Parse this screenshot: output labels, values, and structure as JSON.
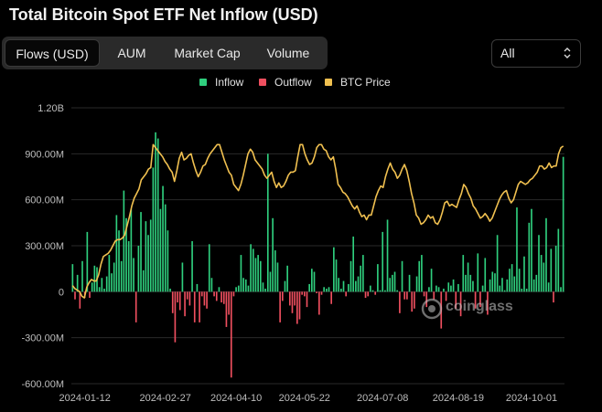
{
  "title": "Total Bitcoin Spot ETF Net Inflow (USD)",
  "tabs": [
    {
      "label": "Flows (USD)",
      "active": true
    },
    {
      "label": "AUM",
      "active": false
    },
    {
      "label": "Market Cap",
      "active": false
    },
    {
      "label": "Volume",
      "active": false
    }
  ],
  "range_select": {
    "value": "All",
    "icon": "chevron-updown-icon"
  },
  "legend": [
    {
      "label": "Inflow",
      "color": "#2fcf7e"
    },
    {
      "label": "Outflow",
      "color": "#ef4f5f"
    },
    {
      "label": "BTC Price",
      "color": "#f0c050"
    }
  ],
  "watermark": "coinglass",
  "colors": {
    "inflow": "#2fcf7e",
    "outflow": "#ef4f5f",
    "price": "#f0c050",
    "grid": "#2a2a2a",
    "axis_text": "#bdbdbd"
  },
  "chart_data": {
    "type": "bar",
    "title": "Total Bitcoin Spot ETF Net Inflow (USD)",
    "legend_position": "top-center",
    "grid": true,
    "y_ticks": [
      "1.20B",
      "900.00M",
      "600.00M",
      "300.00M",
      "0",
      "-300.00M",
      "-600.00M"
    ],
    "y_tick_values": [
      1200,
      900,
      600,
      300,
      0,
      -300,
      -600
    ],
    "ylim": [
      -600,
      1200
    ],
    "y_unit": "M USD",
    "x_ticks": [
      "2024-01-12",
      "2024-02-27",
      "2024-04-10",
      "2024-05-22",
      "2024-07-08",
      "2024-08-19",
      "2024-10-01"
    ],
    "x_tick_positions": [
      5,
      38,
      67,
      95,
      127,
      158,
      188
    ],
    "series": [
      {
        "name": "Inflow / Outflow",
        "type": "bar",
        "values": [
          180,
          -50,
          110,
          -110,
          200,
          -40,
          390,
          -40,
          60,
          170,
          160,
          30,
          90,
          20,
          100,
          240,
          120,
          190,
          500,
          400,
          200,
          660,
          480,
          330,
          540,
          220,
          -200,
          300,
          520,
          140,
          460,
          370,
          470,
          810,
          1040,
          1000,
          540,
          690,
          570,
          400,
          20,
          -140,
          -330,
          -70,
          -120,
          190,
          -160,
          -50,
          -90,
          330,
          -200,
          50,
          -200,
          -30,
          -90,
          -110,
          310,
          90,
          -30,
          -60,
          30,
          -70,
          -80,
          -230,
          -150,
          -560,
          -30,
          30,
          40,
          240,
          90,
          80,
          40,
          310,
          280,
          220,
          240,
          200,
          60,
          20,
          900,
          130,
          480,
          270,
          190,
          -200,
          -60,
          70,
          170,
          -90,
          -140,
          -90,
          -210,
          -180,
          -20,
          -30,
          -100,
          50,
          150,
          130,
          -10,
          -150,
          -20,
          30,
          20,
          30,
          -80,
          290,
          210,
          90,
          20,
          70,
          -30,
          50,
          200,
          360,
          70,
          100,
          170,
          240,
          -40,
          -30,
          40,
          10,
          -20,
          180,
          10,
          390,
          10,
          470,
          90,
          110,
          130,
          10,
          -140,
          200,
          -50,
          -50,
          110,
          -130,
          -110,
          100,
          200,
          240,
          -30,
          -100,
          30,
          150,
          -50,
          40,
          30,
          -240,
          20,
          -60,
          60,
          40,
          80,
          -110,
          50,
          -160,
          240,
          110,
          190,
          110,
          70,
          -110,
          250,
          -100,
          40,
          220,
          -150,
          80,
          130,
          120,
          370,
          40,
          90,
          10,
          80,
          150,
          180,
          100,
          550,
          150,
          20,
          230,
          20,
          450,
          540,
          80,
          110,
          370,
          240,
          190,
          480,
          60,
          280,
          -70,
          300,
          410,
          30,
          880
        ]
      },
      {
        "name": "BTC Price",
        "type": "line",
        "values": [
          40,
          20,
          10,
          0,
          -30,
          -40,
          30,
          60,
          80,
          70,
          70,
          110,
          180,
          230,
          240,
          250,
          270,
          300,
          330,
          340,
          340,
          350,
          370,
          430,
          490,
          560,
          610,
          640,
          670,
          730,
          750,
          770,
          800,
          810,
          960,
          940,
          920,
          900,
          880,
          850,
          830,
          800,
          780,
          720,
          790,
          870,
          910,
          860,
          870,
          890,
          900,
          840,
          790,
          750,
          780,
          820,
          830,
          870,
          900,
          920,
          940,
          960,
          960,
          910,
          860,
          820,
          780,
          760,
          700,
          680,
          660,
          700,
          760,
          830,
          900,
          930,
          910,
          860,
          840,
          820,
          800,
          760,
          740,
          760,
          780,
          720,
          680,
          710,
          680,
          690,
          720,
          760,
          780,
          780,
          790,
          880,
          960,
          960,
          900,
          860,
          830,
          840,
          880,
          940,
          960,
          960,
          930,
          920,
          880,
          860,
          880,
          800,
          700,
          680,
          650,
          640,
          620,
          590,
          560,
          540,
          560,
          520,
          490,
          500,
          470,
          500,
          500,
          560,
          620,
          660,
          690,
          680,
          750,
          800,
          840,
          800,
          780,
          740,
          760,
          800,
          830,
          790,
          720,
          640,
          580,
          500,
          480,
          440,
          450,
          470,
          500,
          480,
          490,
          450,
          440,
          470,
          520,
          580,
          590,
          560,
          570,
          560,
          550,
          600,
          640,
          700,
          680,
          640,
          610,
          560,
          540,
          510,
          480,
          490,
          510,
          490,
          460,
          480,
          520,
          560,
          600,
          630,
          650,
          660,
          610,
          580,
          600,
          650,
          700,
          720,
          710,
          700,
          710,
          730,
          740,
          760,
          780,
          820,
          820,
          800,
          810,
          840,
          810,
          820,
          820,
          900,
          940,
          950
        ]
      }
    ]
  }
}
